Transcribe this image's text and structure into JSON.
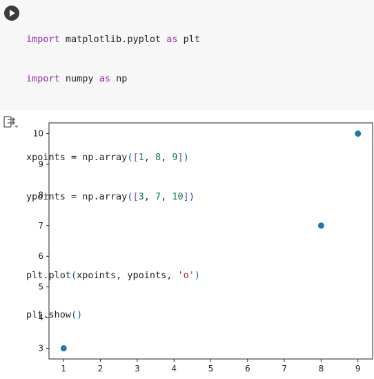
{
  "code_cell": {
    "lines": [
      "import matplotlib.pyplot as plt",
      "import numpy as np",
      "",
      "xpoints = np.array([1, 8, 9])",
      "ypoints = np.array([3, 7, 10])",
      "",
      "plt.plot(xpoints, ypoints, 'o')",
      "plt.show()"
    ]
  },
  "output": {
    "icon": "output-toggle-icon"
  },
  "chart_data": {
    "type": "scatter",
    "x": [
      1,
      8,
      9
    ],
    "y": [
      3,
      7,
      10
    ],
    "marker": "o",
    "color": "#1f77b4",
    "xticks": [
      1,
      2,
      3,
      4,
      5,
      6,
      7,
      8,
      9
    ],
    "yticks": [
      3,
      4,
      5,
      6,
      7,
      8,
      9,
      10
    ],
    "xlim": [
      0.6,
      9.4
    ],
    "ylim": [
      2.65,
      10.35
    ],
    "grid": false
  },
  "colors": {
    "cell_background": "#f7f7f7",
    "run_button": "#3c3c3c",
    "keyword": "#9c27b0",
    "bracket": "#0b55c7",
    "number": "#0c7a3c",
    "string": "#b3261e",
    "marker": "#1f77b4"
  }
}
